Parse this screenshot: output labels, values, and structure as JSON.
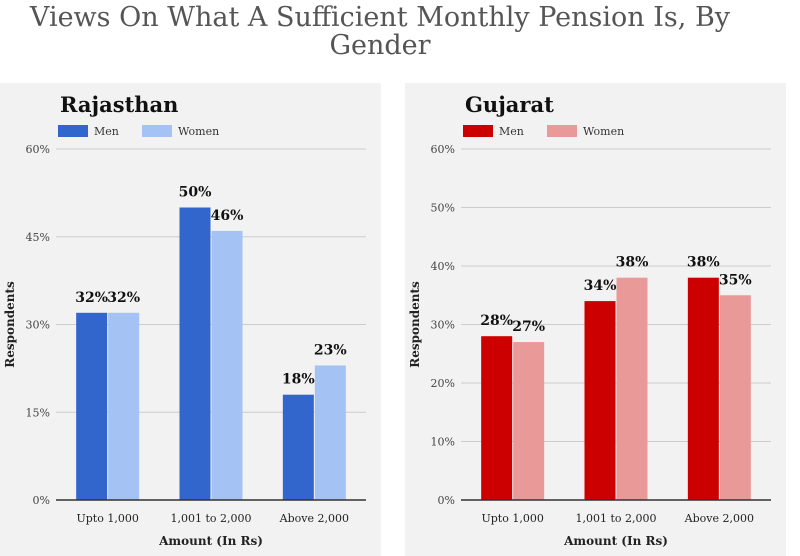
{
  "page": {
    "title": "Views On What A Sufficient Monthly Pension Is, By Gender"
  },
  "chart_data": [
    {
      "type": "bar",
      "title": "Rajasthan",
      "categories": [
        "Upto 1,000",
        "1,001 to 2,000",
        "Above 2,000"
      ],
      "series": [
        {
          "name": "Men",
          "values": [
            32,
            50,
            18
          ],
          "labels": [
            "32%",
            "50%",
            "18%"
          ],
          "color": "#3366cc"
        },
        {
          "name": "Women",
          "values": [
            32,
            46,
            23
          ],
          "labels": [
            "32%",
            "46%",
            "23%"
          ],
          "color": "#a4c2f4"
        }
      ],
      "xlabel": "Amount (In Rs)",
      "ylabel": "Respondents",
      "ylim": [
        0,
        60
      ],
      "yticks": [
        0,
        15,
        30,
        45,
        60
      ],
      "ytick_labels": [
        "0%",
        "15%",
        "30%",
        "45%",
        "60%"
      ],
      "grid": true,
      "legend": "top-left"
    },
    {
      "type": "bar",
      "title": "Gujarat",
      "categories": [
        "Upto 1,000",
        "1,001 to 2,000",
        "Above 2,000"
      ],
      "series": [
        {
          "name": "Men",
          "values": [
            28,
            34,
            38
          ],
          "labels": [
            "28%",
            "34%",
            "38%"
          ],
          "color": "#cc0000"
        },
        {
          "name": "Women",
          "values": [
            27,
            38,
            35
          ],
          "labels": [
            "27%",
            "38%",
            "35%"
          ],
          "color": "#ea9999"
        }
      ],
      "xlabel": "Amount (In Rs)",
      "ylabel": "Respondents",
      "ylim": [
        0,
        60
      ],
      "yticks": [
        0,
        10,
        20,
        30,
        40,
        50,
        60
      ],
      "ytick_labels": [
        "0%",
        "10%",
        "20%",
        "30%",
        "40%",
        "50%",
        "60%"
      ],
      "grid": true,
      "legend": "top-left"
    }
  ]
}
